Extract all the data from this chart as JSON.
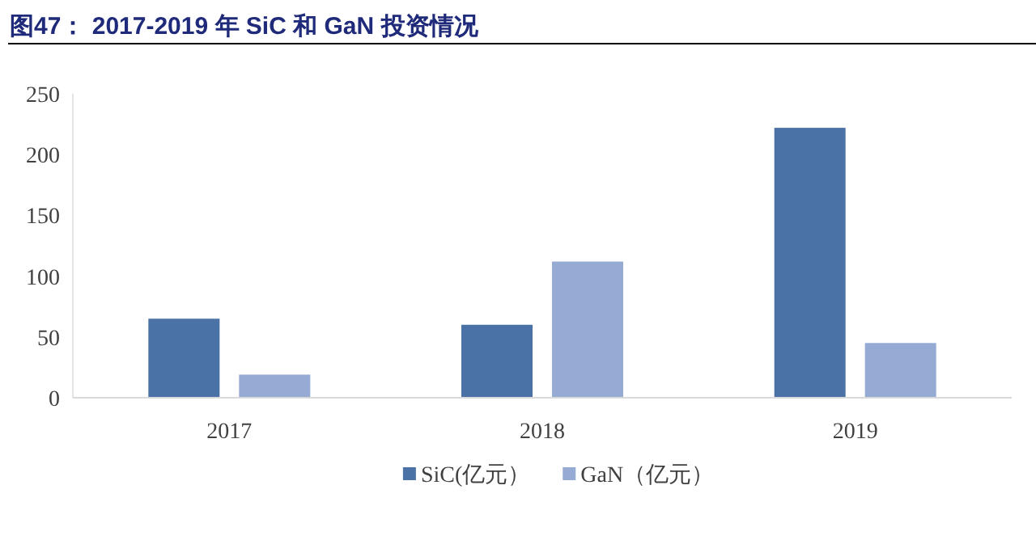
{
  "chart_data": {
    "type": "bar",
    "title": "图47：    2017-2019 年 SiC 和 GaN 投资情况",
    "categories": [
      "2017",
      "2018",
      "2019"
    ],
    "series": [
      {
        "name": "SiC(亿元）",
        "color": "#4a72a6",
        "values": [
          65,
          60,
          222
        ]
      },
      {
        "name": "GaN（亿元）",
        "color": "#95abd3",
        "values": [
          19,
          112,
          45
        ]
      }
    ],
    "ylim": [
      0,
      250
    ],
    "yticks": [
      0,
      50,
      100,
      150,
      200,
      250
    ],
    "legend": "bottom"
  }
}
